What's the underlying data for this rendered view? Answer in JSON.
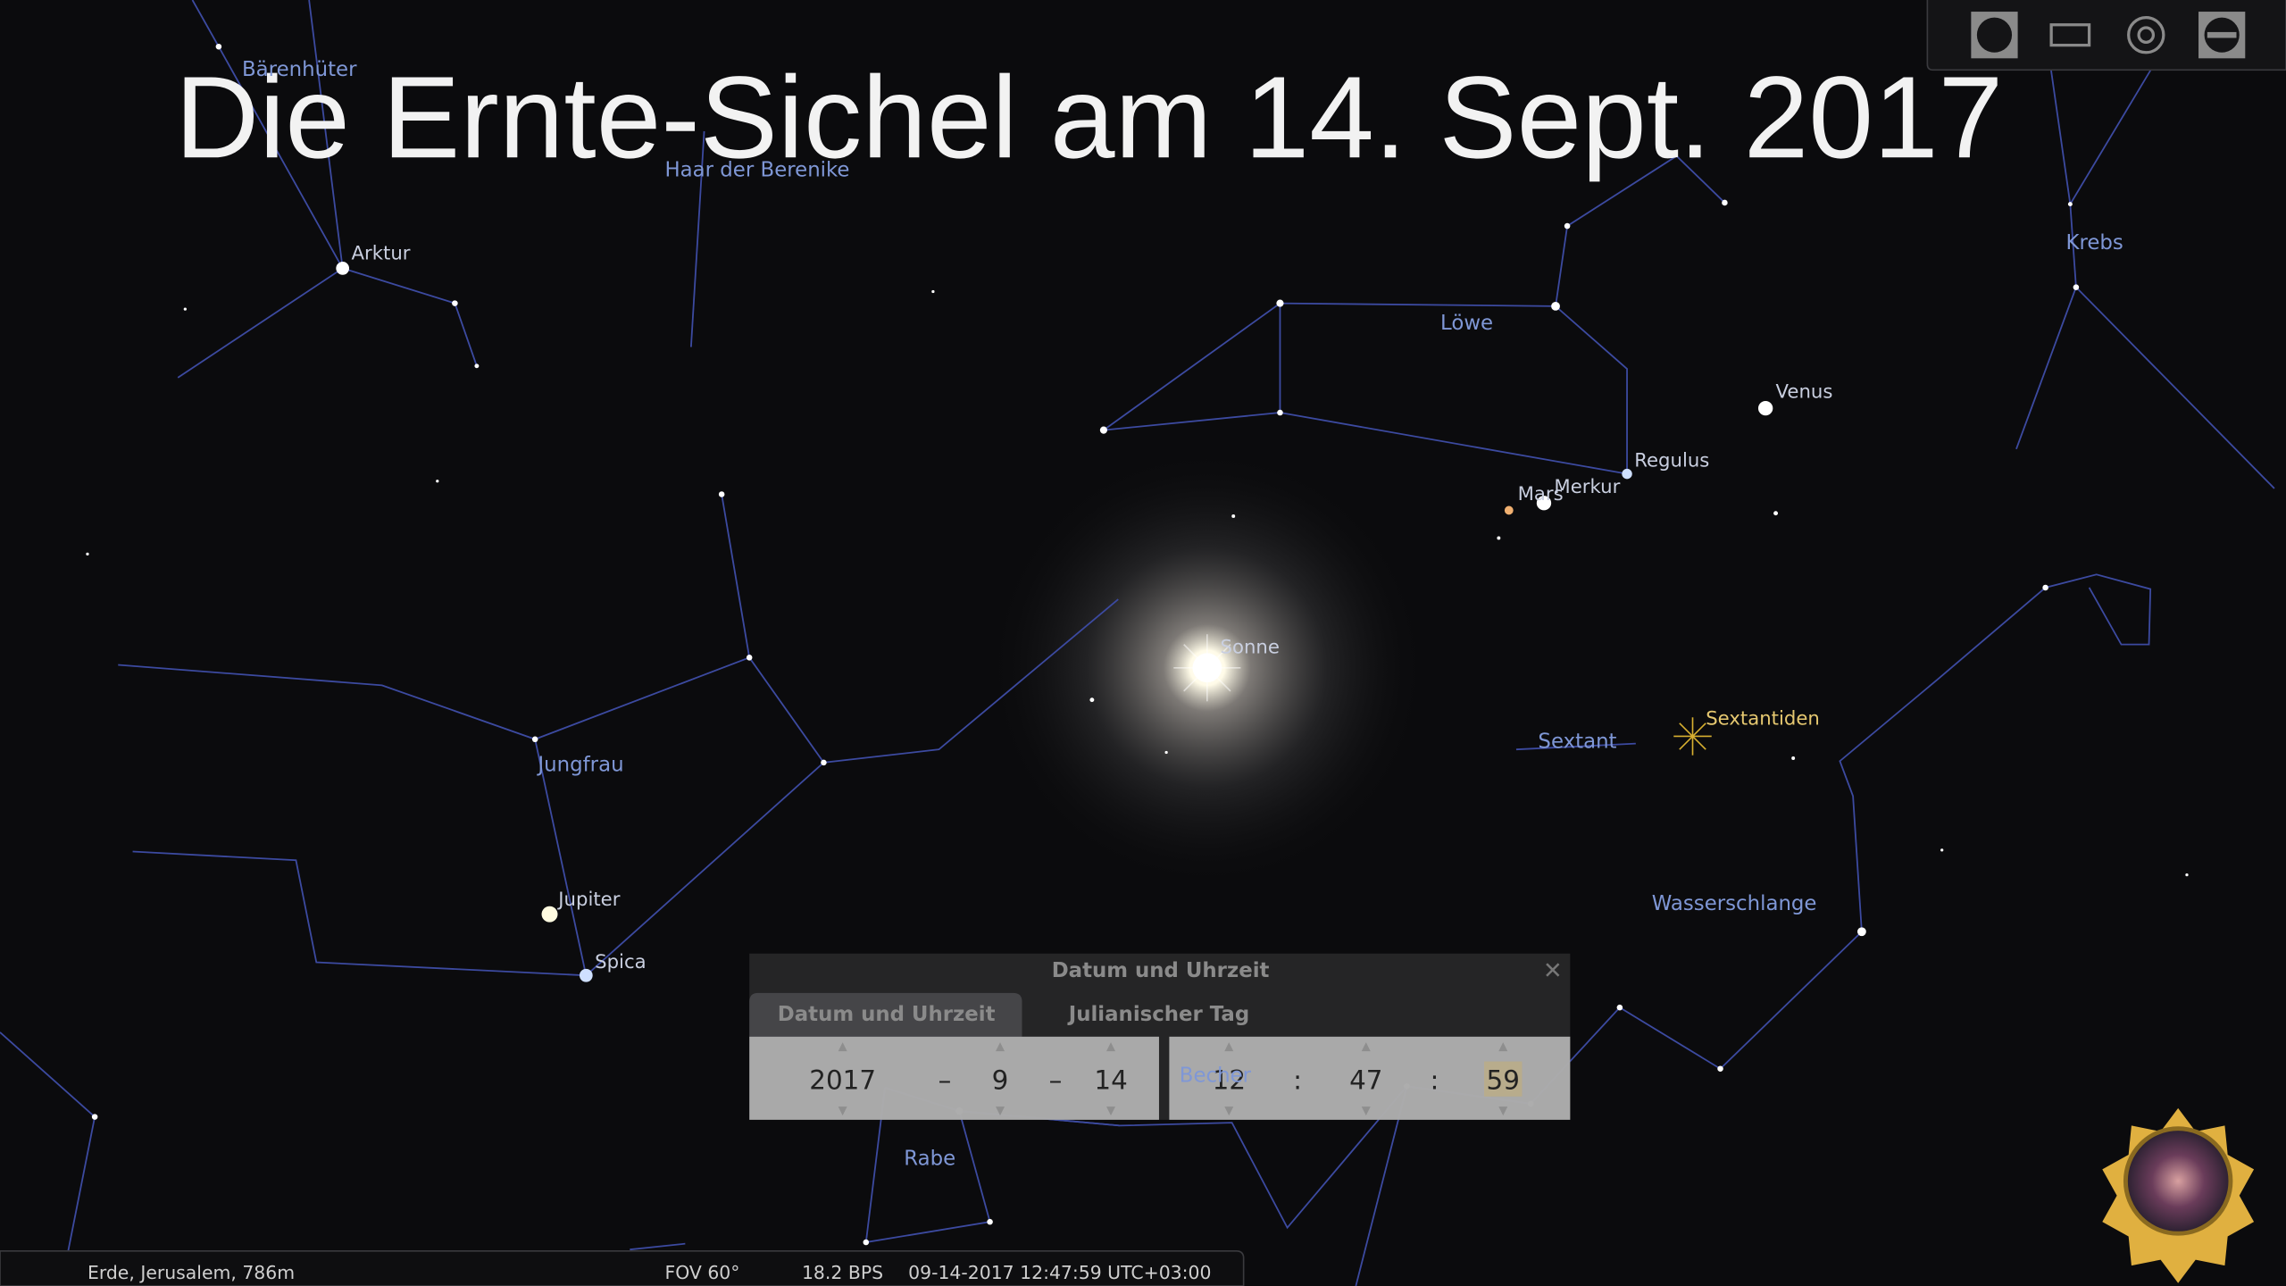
{
  "title": "Die Ernte-Sichel am 14. Sept. 2017",
  "sky_labels": [
    "Bärenhüter",
    "Haar der Berenike",
    "Arktur",
    "Krebs",
    "Löwe",
    "Venus",
    "Regulus",
    "Mars",
    "Merkur",
    "Sonne",
    "Sextantiden",
    "Sextant",
    "Jungfrau",
    "Jupiter",
    "Wasserschlange",
    "Spica",
    "Becher",
    "Rabe"
  ],
  "dialog": {
    "title": "Datum und Uhrzeit",
    "tabs": [
      "Datum und Uhrzeit",
      "Julianischer Tag"
    ],
    "date": [
      "2017",
      "9",
      "14"
    ],
    "date_separators": [
      "–",
      "–"
    ],
    "time": [
      "12",
      "47",
      "59"
    ],
    "time_separators": [
      ":",
      ":"
    ]
  },
  "status_bar": {
    "location": "Erde, Jerusalem, 786m",
    "fov": "FOV 60°",
    "fps": "18.2 BPS",
    "datetime": "09-14-2017 12:47:59 UTC+03:00"
  }
}
